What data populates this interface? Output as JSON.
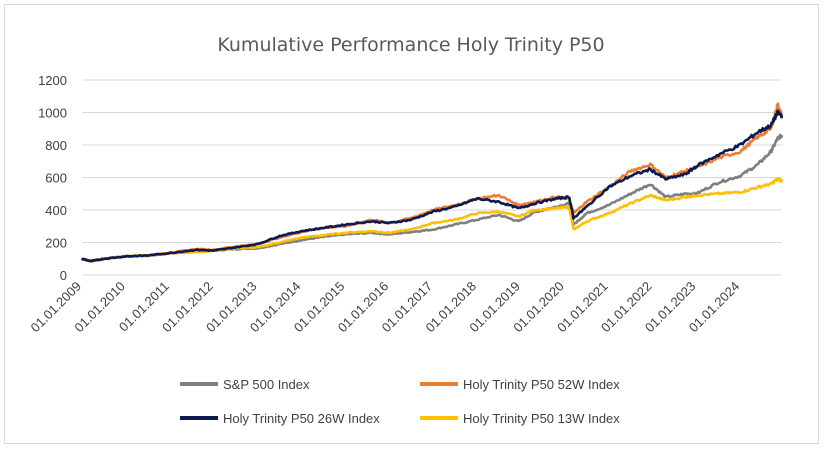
{
  "chart_data": {
    "type": "line",
    "title": "Kumulative Performance Holy Trinity P50",
    "xlabel": "",
    "ylabel": "",
    "ylim": [
      0,
      1200
    ],
    "yticks": [
      0,
      200,
      400,
      600,
      800,
      1000,
      1200
    ],
    "xlim": [
      2009.0,
      2024.95
    ],
    "xticks": [
      {
        "label": "01.01.2009",
        "x": 2009
      },
      {
        "label": "01.01.2010",
        "x": 2010
      },
      {
        "label": "01.01.2011",
        "x": 2011
      },
      {
        "label": "01.01.2012",
        "x": 2012
      },
      {
        "label": "01.01.2013",
        "x": 2013
      },
      {
        "label": "01.01.2014",
        "x": 2014
      },
      {
        "label": "01.01.2015",
        "x": 2015
      },
      {
        "label": "01.01.2016",
        "x": 2016
      },
      {
        "label": "01.01.2017",
        "x": 2017
      },
      {
        "label": "01.01.2018",
        "x": 2018
      },
      {
        "label": "01.01.2019",
        "x": 2019
      },
      {
        "label": "01.01.2020",
        "x": 2020
      },
      {
        "label": "01.01.2021",
        "x": 2021
      },
      {
        "label": "01.01.2022",
        "x": 2022
      },
      {
        "label": "01.01.2023",
        "x": 2023
      },
      {
        "label": "01.01.2024",
        "x": 2024
      }
    ],
    "grid": true,
    "legend": "bottom",
    "x": [
      2009.0,
      2009.2,
      2009.5,
      2010.0,
      2010.5,
      2011.0,
      2011.6,
      2012.0,
      2012.5,
      2013.0,
      2013.5,
      2014.0,
      2014.5,
      2015.0,
      2015.6,
      2016.0,
      2016.5,
      2017.0,
      2017.5,
      2018.0,
      2018.5,
      2018.95,
      2019.3,
      2019.8,
      2020.1,
      2020.2,
      2020.5,
      2021.0,
      2021.5,
      2021.95,
      2022.3,
      2022.75,
      2023.0,
      2023.5,
      2024.0,
      2024.4,
      2024.7,
      2024.85,
      2024.95
    ],
    "series": [
      {
        "name": "S&P 500 Index",
        "color": "#7f7f7f",
        "values": [
          100,
          85,
          100,
          115,
          120,
          135,
          145,
          150,
          160,
          165,
          190,
          215,
          235,
          250,
          260,
          250,
          265,
          280,
          310,
          340,
          370,
          330,
          385,
          420,
          440,
          310,
          380,
          430,
          500,
          560,
          480,
          500,
          500,
          570,
          610,
          680,
          760,
          840,
          860
        ]
      },
      {
        "name": "Holy Trinity P50 52W Index",
        "color": "#ed7d31",
        "values": [
          100,
          85,
          100,
          115,
          120,
          135,
          160,
          155,
          175,
          190,
          230,
          265,
          290,
          300,
          340,
          320,
          350,
          400,
          430,
          470,
          490,
          430,
          450,
          480,
          470,
          380,
          450,
          540,
          640,
          680,
          600,
          640,
          660,
          720,
          760,
          850,
          900,
          1050,
          980
        ]
      },
      {
        "name": "Holy Trinity P50 26W Index",
        "color": "#0c1a50",
        "values": [
          100,
          85,
          100,
          115,
          120,
          135,
          155,
          150,
          170,
          190,
          240,
          270,
          290,
          310,
          330,
          320,
          340,
          390,
          420,
          470,
          450,
          410,
          440,
          470,
          480,
          350,
          420,
          540,
          610,
          650,
          590,
          620,
          670,
          740,
          800,
          880,
          920,
          1000,
          980
        ]
      },
      {
        "name": "Holy Trinity P50 13W Index",
        "color": "#ffc000",
        "values": [
          100,
          85,
          100,
          115,
          120,
          135,
          140,
          150,
          165,
          170,
          200,
          230,
          245,
          260,
          270,
          260,
          280,
          320,
          340,
          380,
          390,
          360,
          400,
          410,
          420,
          280,
          330,
          380,
          440,
          490,
          460,
          480,
          490,
          500,
          510,
          540,
          560,
          590,
          580
        ]
      }
    ]
  }
}
